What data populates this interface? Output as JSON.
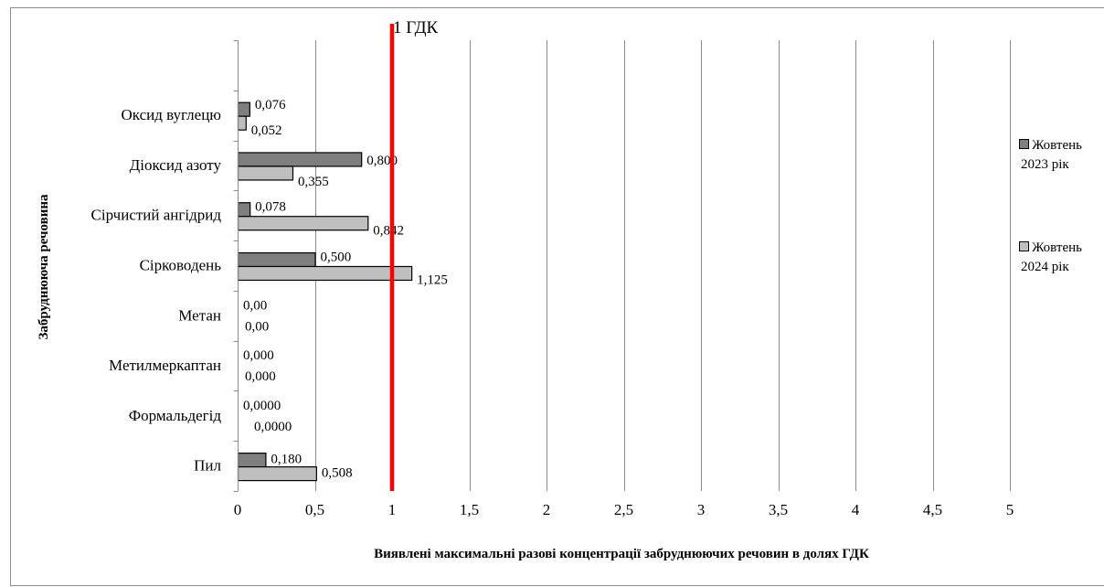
{
  "chart_data": {
    "type": "bar",
    "orientation": "horizontal",
    "title": "",
    "categories": [
      "Оксид вуглецю",
      "Діоксид азоту",
      "Сірчистий ангідрид",
      "Сірководень",
      "Метан",
      "Метилмеркаптан",
      "Формальдегід",
      "Пил"
    ],
    "series": [
      {
        "name": "Жовтень 2023 рік",
        "name_lines": [
          "Жовтень",
          "2023 рік"
        ],
        "color": "#7f7f7f",
        "values": [
          0.076,
          0.8,
          0.078,
          0.5,
          0,
          0,
          0,
          0.18
        ],
        "labels": [
          "0,076",
          "0,800",
          "0,078",
          "0,500",
          "0,00",
          "0,000",
          "0,0000",
          "0,180"
        ]
      },
      {
        "name": "Жовтень 2024 рік",
        "name_lines": [
          "Жовтень",
          "2024 рік"
        ],
        "color": "#bfbfbf",
        "values": [
          0.052,
          0.355,
          0.842,
          1.125,
          0,
          0,
          0,
          0.508
        ],
        "labels": [
          "0,052",
          "0,355",
          "0,842",
          "1,125",
          "0,00",
          "0,000",
          "0,0000",
          "0,508"
        ]
      }
    ],
    "xlim": [
      0,
      5
    ],
    "xticks": [
      0,
      0.5,
      1,
      1.5,
      2,
      2.5,
      3,
      3.5,
      4,
      4.5,
      5
    ],
    "xtick_labels": [
      "0",
      "0,5",
      "1",
      "1,5",
      "2",
      "2,5",
      "3",
      "3,5",
      "4",
      "4,5",
      "5"
    ],
    "xlabel": "Виявлені максимальні  разові концентрації забруднюючих речовин в долях ГДК",
    "ylabel": "Забруднююча речовина",
    "reference_line": {
      "value": 1,
      "label": "1 ГДК",
      "color": "#ff0000"
    },
    "grid": "vertical",
    "legend_position": "right"
  }
}
